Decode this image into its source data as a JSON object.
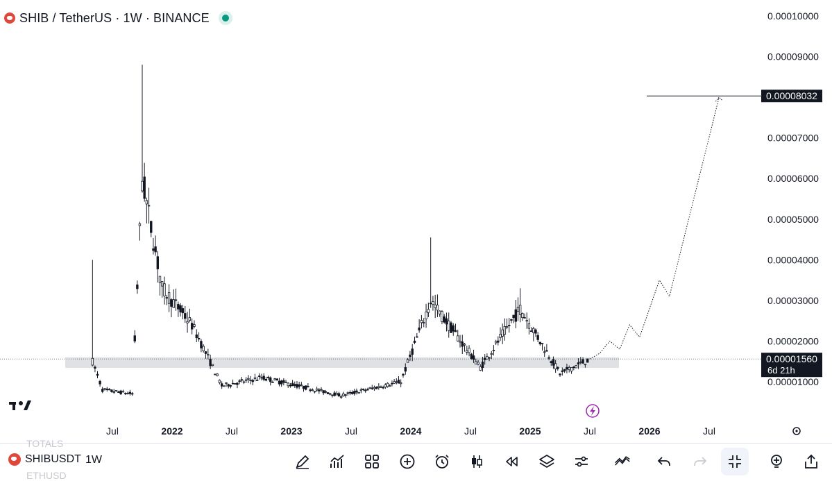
{
  "header": {
    "title": "SHIB / TetherUS · 1W · BINANCE",
    "status_color": "#089981"
  },
  "price_axis": {
    "ticks": [
      "0.00010000",
      "0.00009000",
      "0.00008032",
      "0.00007000",
      "0.00006000",
      "0.00005000",
      "0.00004000",
      "0.00003000",
      "0.00002000",
      "0.00001560",
      "0.00001000"
    ],
    "target_label": "0.00008032",
    "current_price_label": "0.00001560",
    "countdown_label": "6d 21h"
  },
  "time_axis": {
    "labels": [
      "Jul",
      "2022",
      "Jul",
      "2023",
      "Jul",
      "2024",
      "Jul",
      "2025",
      "Jul",
      "2026",
      "Jul"
    ]
  },
  "chart_data": {
    "type": "candlestick",
    "title": "SHIB / TetherUS · 1W · BINANCE",
    "ylim": [
      0.0,
      0.0001
    ],
    "y_ticks": [
      1e-05,
      2e-05,
      3e-05,
      4e-05,
      5e-05,
      6e-05,
      7e-05,
      8e-05,
      9e-05,
      0.0001
    ],
    "x_ticks": [
      "Jul",
      "2022",
      "Jul",
      "2023",
      "Jul",
      "2024",
      "Jul",
      "2025",
      "Jul",
      "2026",
      "Jul"
    ],
    "current_price": 1.56e-05,
    "target_price": 8.032e-05,
    "support_zone": [
      1.34e-05,
      1.6e-05
    ],
    "keypoints": [
      {
        "date": "2021-05",
        "price": 1.5e-05,
        "high": 4e-05
      },
      {
        "date": "2021-06",
        "price": 8e-06
      },
      {
        "date": "2021-09",
        "price": 7e-06
      },
      {
        "date": "2021-10",
        "price": 6e-05,
        "high": 8.8e-05
      },
      {
        "date": "2021-12",
        "price": 3.3e-05
      },
      {
        "date": "2022-03",
        "price": 2.4e-05
      },
      {
        "date": "2022-06",
        "price": 9e-06
      },
      {
        "date": "2022-10",
        "price": 1.1e-05
      },
      {
        "date": "2023-06",
        "price": 6.6e-06
      },
      {
        "date": "2023-12",
        "price": 1e-05
      },
      {
        "date": "2024-03",
        "price": 3e-05,
        "high": 4.55e-05
      },
      {
        "date": "2024-08",
        "price": 1.35e-05
      },
      {
        "date": "2024-12",
        "price": 2.8e-05,
        "high": 3.3e-05
      },
      {
        "date": "2025-04",
        "price": 1.2e-05
      },
      {
        "date": "2025-07",
        "price": 1.56e-05
      }
    ],
    "projection": [
      {
        "date": "2025-08",
        "price": 1.7e-05
      },
      {
        "date": "2025-09",
        "price": 2e-05
      },
      {
        "date": "2025-10",
        "price": 1.8e-05
      },
      {
        "date": "2025-11",
        "price": 2.4e-05
      },
      {
        "date": "2025-12",
        "price": 2.1e-05
      },
      {
        "date": "2026-02",
        "price": 3.5e-05
      },
      {
        "date": "2026-03",
        "price": 3.1e-05
      },
      {
        "date": "2026-08",
        "price": 8e-05
      }
    ]
  },
  "bottom_toolbar": {
    "symbol": "SHIBUSDT",
    "interval": "1W",
    "ghost_above": "TOTALS",
    "ghost_below": "ETHUSD",
    "tools": [
      "draw-icon",
      "indicators-icon",
      "grid-layout-icon",
      "add-icon",
      "alert-clock-icon",
      "candles-icon",
      "replay-icon",
      "layers-icon",
      "settings-sliders-icon",
      "compare-icon",
      "undo-icon",
      "redo-icon",
      "collapse-icon",
      "idea-icon",
      "share-icon"
    ]
  }
}
